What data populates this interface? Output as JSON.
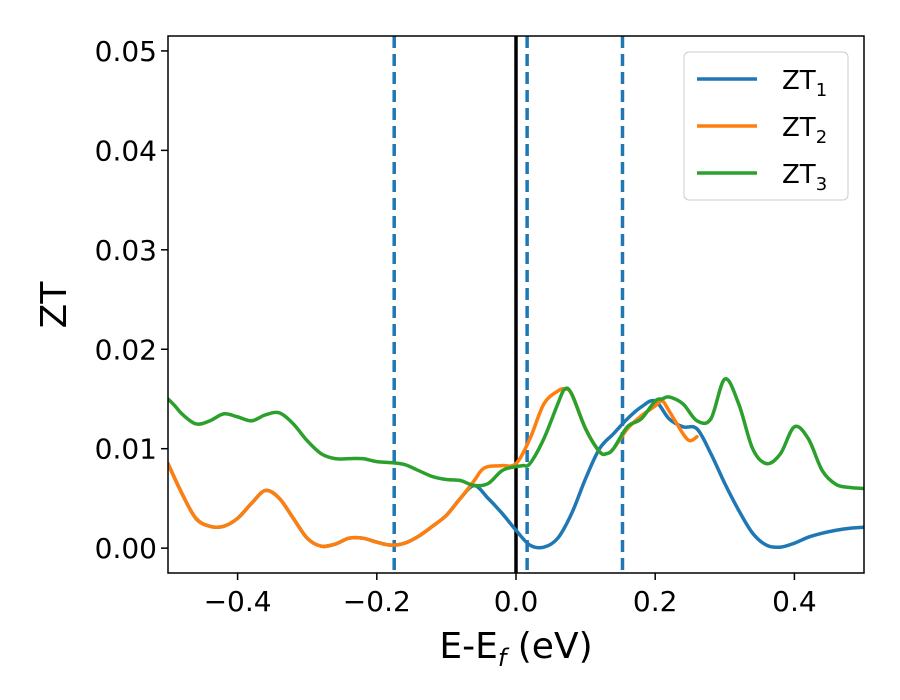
{
  "chart_data": {
    "type": "line",
    "xlabel": "E-E",
    "xlabel_sub": "f",
    "xlabel_unit": " (eV)",
    "ylabel": "ZT",
    "xlim": [
      -0.5,
      0.5
    ],
    "ylim": [
      -0.0025,
      0.0515
    ],
    "xticks": [
      -0.4,
      -0.2,
      0.0,
      0.2,
      0.4
    ],
    "xtick_labels": [
      "−0.4",
      "−0.2",
      "0.0",
      "0.2",
      "0.4"
    ],
    "yticks": [
      0.0,
      0.01,
      0.02,
      0.03,
      0.04,
      0.05
    ],
    "ytick_labels": [
      "0.00",
      "0.01",
      "0.02",
      "0.03",
      "0.04",
      "0.05"
    ],
    "grid": false,
    "legend_position": "top-right",
    "vlines_dashed": [
      -0.175,
      0.016,
      0.153
    ],
    "vline_dashed_color": "#1f77b4",
    "vline_solid": 0.0,
    "vline_solid_color": "#000000",
    "series": [
      {
        "name": "ZT",
        "name_sub": "1",
        "color": "#1f77b4",
        "x": [
          -0.5,
          -0.48,
          -0.46,
          -0.44,
          -0.42,
          -0.4,
          -0.38,
          -0.36,
          -0.34,
          -0.32,
          -0.3,
          -0.28,
          -0.26,
          -0.24,
          -0.22,
          -0.2,
          -0.18,
          -0.16,
          -0.14,
          -0.12,
          -0.1,
          -0.08,
          -0.06,
          -0.04,
          -0.02,
          0.0,
          0.02,
          0.04,
          0.06,
          0.08,
          0.1,
          0.12,
          0.14,
          0.16,
          0.18,
          0.2,
          0.22,
          0.24,
          0.26,
          0.28,
          0.3,
          0.32,
          0.34,
          0.36,
          0.38,
          0.4,
          0.42,
          0.44,
          0.46,
          0.48,
          0.5
        ],
        "y": [
          0.0085,
          0.0055,
          0.003,
          0.0022,
          0.0022,
          0.003,
          0.0045,
          0.0058,
          0.005,
          0.003,
          0.001,
          0.0002,
          0.0004,
          0.001,
          0.001,
          0.0006,
          0.0003,
          0.0005,
          0.0012,
          0.0022,
          0.0033,
          0.005,
          0.0063,
          0.005,
          0.0035,
          0.0018,
          0.0003,
          0.0001,
          0.001,
          0.0035,
          0.007,
          0.01,
          0.0115,
          0.013,
          0.0142,
          0.0148,
          0.013,
          0.0122,
          0.012,
          0.0095,
          0.0065,
          0.0038,
          0.0015,
          0.0003,
          0.0001,
          0.0005,
          0.0011,
          0.0015,
          0.0018,
          0.002,
          0.0021
        ]
      },
      {
        "name": "ZT",
        "name_sub": "2",
        "color": "#ff7f0e",
        "x": [
          -0.5,
          -0.48,
          -0.46,
          -0.44,
          -0.42,
          -0.4,
          -0.38,
          -0.36,
          -0.34,
          -0.32,
          -0.3,
          -0.28,
          -0.26,
          -0.24,
          -0.22,
          -0.2,
          -0.18,
          -0.16,
          -0.14,
          -0.12,
          -0.1,
          -0.08,
          -0.06,
          -0.05,
          -0.04,
          -0.02,
          0.0,
          0.02,
          0.04,
          0.06,
          0.07,
          0.08,
          0.1,
          0.12,
          0.13,
          0.14,
          0.16,
          0.18,
          0.2,
          0.21,
          0.22,
          0.24,
          0.25,
          0.26
        ],
        "y": [
          0.0085,
          0.0055,
          0.003,
          0.0022,
          0.0022,
          0.003,
          0.0045,
          0.0058,
          0.005,
          0.003,
          0.001,
          0.0002,
          0.0004,
          0.001,
          0.001,
          0.0006,
          0.0003,
          0.0005,
          0.0012,
          0.0022,
          0.0033,
          0.005,
          0.0068,
          0.0078,
          0.0082,
          0.0083,
          0.0085,
          0.011,
          0.0145,
          0.0158,
          0.016,
          0.0155,
          0.012,
          0.0097,
          0.0095,
          0.01,
          0.012,
          0.0133,
          0.0143,
          0.0148,
          0.0138,
          0.0115,
          0.0108,
          0.0112
        ]
      },
      {
        "name": "ZT",
        "name_sub": "3",
        "color": "#2ca02c",
        "x": [
          -0.5,
          -0.49,
          -0.48,
          -0.46,
          -0.44,
          -0.42,
          -0.4,
          -0.38,
          -0.36,
          -0.34,
          -0.32,
          -0.3,
          -0.28,
          -0.26,
          -0.24,
          -0.22,
          -0.2,
          -0.18,
          -0.16,
          -0.14,
          -0.12,
          -0.1,
          -0.08,
          -0.06,
          -0.04,
          -0.02,
          0.0,
          0.01,
          0.02,
          0.04,
          0.06,
          0.07,
          0.08,
          0.1,
          0.12,
          0.13,
          0.14,
          0.16,
          0.18,
          0.2,
          0.21,
          0.22,
          0.24,
          0.26,
          0.28,
          0.3,
          0.32,
          0.34,
          0.36,
          0.38,
          0.4,
          0.42,
          0.44,
          0.46,
          0.48,
          0.5
        ],
        "y": [
          0.015,
          0.0143,
          0.0135,
          0.0125,
          0.0128,
          0.0135,
          0.0132,
          0.0128,
          0.0134,
          0.0136,
          0.0125,
          0.0108,
          0.0095,
          0.009,
          0.009,
          0.009,
          0.0087,
          0.0086,
          0.0084,
          0.0078,
          0.0072,
          0.0069,
          0.0068,
          0.0063,
          0.0065,
          0.0078,
          0.0082,
          0.0083,
          0.0085,
          0.011,
          0.0145,
          0.016,
          0.0155,
          0.012,
          0.0097,
          0.0095,
          0.01,
          0.0122,
          0.013,
          0.0148,
          0.015,
          0.0152,
          0.0145,
          0.0128,
          0.013,
          0.017,
          0.0145,
          0.01,
          0.0085,
          0.0095,
          0.0122,
          0.011,
          0.0078,
          0.0064,
          0.0061,
          0.006
        ]
      }
    ]
  }
}
